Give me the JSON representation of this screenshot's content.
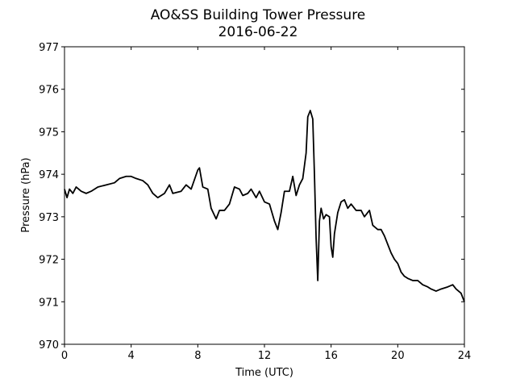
{
  "chart_data": {
    "type": "line",
    "title": "AO&SS Building Tower Pressure",
    "subtitle": "2016-06-22",
    "x_label": "Time (UTC)",
    "y_label": "Pressure (hPa)",
    "xlim": [
      0,
      24
    ],
    "xticks": [
      0,
      4,
      8,
      12,
      16,
      20,
      24
    ],
    "ylim": [
      970,
      977
    ],
    "yticks": [
      970,
      971,
      972,
      973,
      974,
      975,
      976,
      977
    ],
    "series": [
      {
        "color": "#000000",
        "x": [
          0,
          0.15,
          0.3,
          0.5,
          0.7,
          1.0,
          1.3,
          1.6,
          2.0,
          2.5,
          3.0,
          3.3,
          3.7,
          4.0,
          4.3,
          4.7,
          5.0,
          5.3,
          5.6,
          6.0,
          6.3,
          6.5,
          7.0,
          7.3,
          7.6,
          8.0,
          8.1,
          8.3,
          8.6,
          8.8,
          9.1,
          9.3,
          9.6,
          9.9,
          10.2,
          10.5,
          10.7,
          11.0,
          11.2,
          11.5,
          11.7,
          12.0,
          12.3,
          12.6,
          12.8,
          13.0,
          13.2,
          13.5,
          13.7,
          13.9,
          14.1,
          14.3,
          14.5,
          14.6,
          14.75,
          14.9,
          15.0,
          15.1,
          15.2,
          15.3,
          15.4,
          15.55,
          15.7,
          15.9,
          16.0,
          16.1,
          16.2,
          16.4,
          16.6,
          16.8,
          17.0,
          17.2,
          17.5,
          17.8,
          18.0,
          18.3,
          18.5,
          18.8,
          19.0,
          19.2,
          19.4,
          19.6,
          19.8,
          20.0,
          20.2,
          20.4,
          20.6,
          20.9,
          21.2,
          21.5,
          21.8,
          22.0,
          22.3,
          22.6,
          23.0,
          23.3,
          23.5,
          23.8,
          24.0
        ],
        "values": [
          973.65,
          973.45,
          973.65,
          973.55,
          973.7,
          973.6,
          973.55,
          973.6,
          973.7,
          973.75,
          973.8,
          973.9,
          973.95,
          973.95,
          973.9,
          973.85,
          973.75,
          973.55,
          973.45,
          973.55,
          973.75,
          973.55,
          973.6,
          973.75,
          973.65,
          974.1,
          974.15,
          973.7,
          973.65,
          973.2,
          972.95,
          973.15,
          973.15,
          973.3,
          973.7,
          973.65,
          973.5,
          973.55,
          973.65,
          973.45,
          973.6,
          973.35,
          973.3,
          972.9,
          972.7,
          973.1,
          973.6,
          973.6,
          973.95,
          973.5,
          973.75,
          973.9,
          974.5,
          975.35,
          975.5,
          975.3,
          974.0,
          972.5,
          971.5,
          972.9,
          973.2,
          972.95,
          973.05,
          973.0,
          972.3,
          972.05,
          972.6,
          973.1,
          973.35,
          973.4,
          973.2,
          973.3,
          973.15,
          973.15,
          973.0,
          973.15,
          972.8,
          972.7,
          972.7,
          972.55,
          972.35,
          972.15,
          972.0,
          971.9,
          971.7,
          971.6,
          971.55,
          971.5,
          971.5,
          971.4,
          971.35,
          971.3,
          971.25,
          971.3,
          971.35,
          971.4,
          971.3,
          971.2,
          971.0
        ]
      }
    ]
  }
}
